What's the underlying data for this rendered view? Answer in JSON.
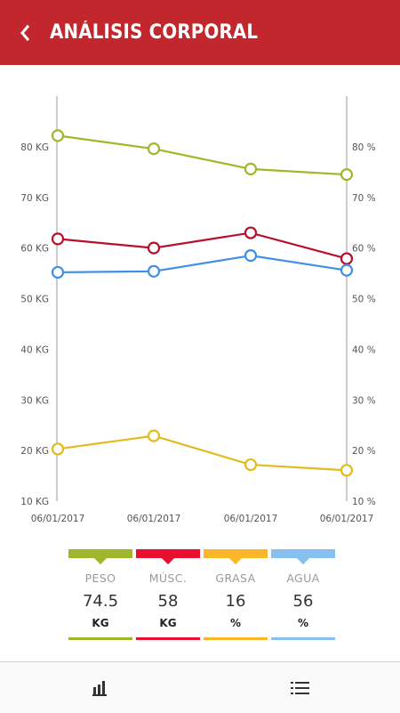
{
  "header": {
    "title": "ANÁLISIS CORPORAL",
    "background": "#c1272d"
  },
  "legend": [
    {
      "label": "PESO",
      "value": "74.5",
      "unit": "KG",
      "color": "#9fb72a"
    },
    {
      "label": "MÚSC.",
      "value": "58",
      "unit": "KG",
      "color": "#e8102e"
    },
    {
      "label": "GRASA",
      "value": "16",
      "unit": "%",
      "color": "#fbb62a"
    },
    {
      "label": "AGUA",
      "value": "56",
      "unit": "%",
      "color": "#85c0f0"
    }
  ],
  "bottom_nav": {
    "left_icon": "bar-chart-icon",
    "right_icon": "list-icon"
  },
  "chart_data": {
    "type": "line",
    "categories": [
      "06/01/2017",
      "06/01/2017",
      "06/01/2017",
      "06/01/2017"
    ],
    "left_axis": {
      "ticks": [
        "10 KG",
        "20 KG",
        "30 KG",
        "40 KG",
        "50 KG",
        "60 KG",
        "70 KG",
        "80 KG"
      ],
      "range": [
        10,
        90
      ]
    },
    "right_axis": {
      "ticks": [
        "10 %",
        "20 %",
        "30 %",
        "40 %",
        "50 %",
        "60 %",
        "70 %",
        "80 %"
      ],
      "range": [
        10,
        90
      ]
    },
    "series": [
      {
        "name": "PESO",
        "axis": "left",
        "color": "#9fb72a",
        "values": [
          82.2,
          79.6,
          75.6,
          74.5
        ]
      },
      {
        "name": "MÚSC.",
        "axis": "left",
        "color": "#b8102a",
        "values": [
          61.8,
          60.0,
          63.0,
          57.9
        ]
      },
      {
        "name": "GRASA",
        "axis": "right",
        "color": "#e3bb1f",
        "values": [
          20.3,
          22.9,
          17.2,
          16.1
        ]
      },
      {
        "name": "AGUA",
        "axis": "right",
        "color": "#3f90e5",
        "values": [
          55.2,
          55.4,
          58.5,
          55.6
        ]
      }
    ]
  }
}
